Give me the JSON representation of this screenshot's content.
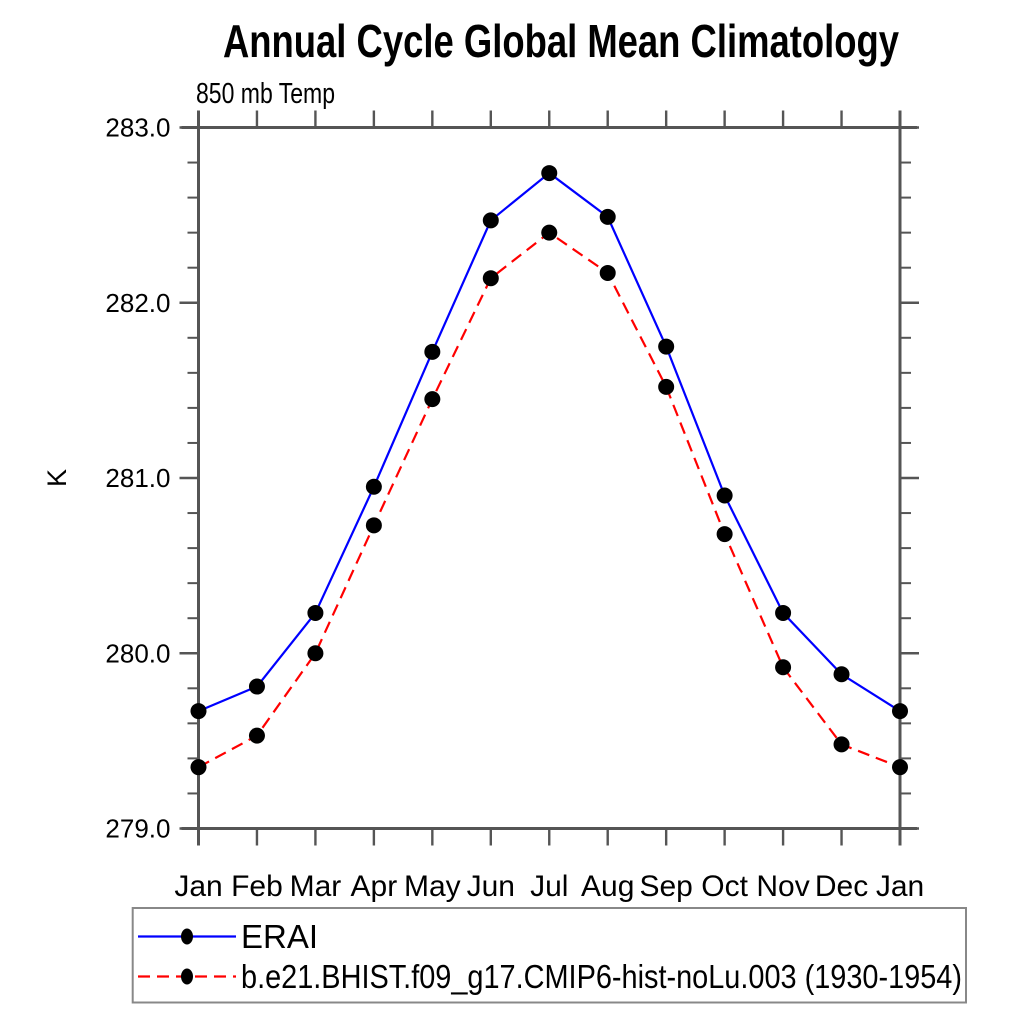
{
  "title": "Annual Cycle Global Mean Climatology",
  "subtitle": "850 mb Temp",
  "chart_data": {
    "type": "line",
    "x_categories": [
      "Jan",
      "Feb",
      "Mar",
      "Apr",
      "May",
      "Jun",
      "Jul",
      "Aug",
      "Sep",
      "Oct",
      "Nov",
      "Dec",
      "Jan"
    ],
    "xlabel": "",
    "ylabel": "K",
    "ylim": [
      279.0,
      283.0
    ],
    "y_major_ticks": [
      279.0,
      280.0,
      281.0,
      282.0,
      283.0
    ],
    "y_major_tick_labels": [
      "279.0",
      "280.0",
      "281.0",
      "282.0",
      "283.0"
    ],
    "y_minor_tick_step": 0.2,
    "grid": false,
    "legend_position": "bottom-left-outside",
    "colors": {
      "axis": "#555555",
      "text": "#000000",
      "erai_line": "#0000ff",
      "model_line": "#ff0000",
      "marker": "#000000",
      "legend_border": "#888888"
    },
    "series": [
      {
        "name": "ERAI",
        "line_style": "solid",
        "marker": "filled-circle",
        "values": [
          279.67,
          279.81,
          280.23,
          280.95,
          281.72,
          282.47,
          282.74,
          282.49,
          281.75,
          280.9,
          280.23,
          279.88,
          279.67
        ]
      },
      {
        "name": "b.e21.BHIST.f09_g17.CMIP6-hist-noLu.003 (1930-1954)",
        "line_style": "dashed",
        "marker": "filled-circle",
        "values": [
          279.35,
          279.53,
          280.0,
          280.73,
          281.45,
          282.14,
          282.4,
          282.17,
          281.52,
          280.68,
          279.92,
          279.48,
          279.35
        ]
      }
    ]
  }
}
